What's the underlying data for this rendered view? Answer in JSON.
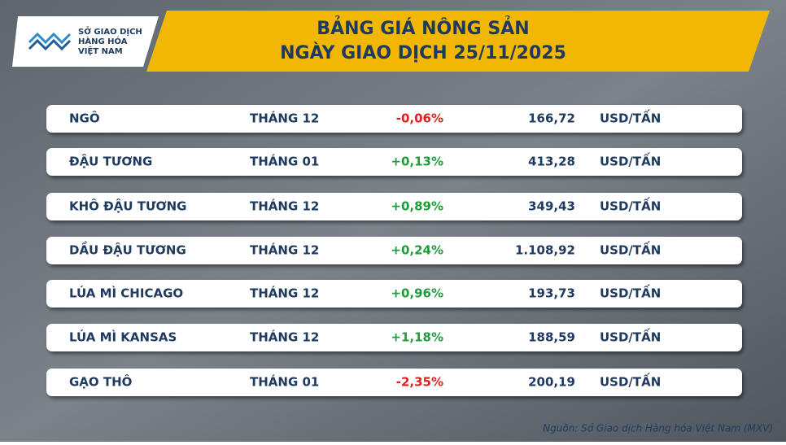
{
  "header": {
    "logo": [
      "SỞ GIAO DỊCH",
      "HÀNG HÓA",
      "VIỆT NAM"
    ],
    "title": [
      "BẢNG GIÁ NÔNG SẢN",
      "NGÀY GIAO DỊCH 25/11/2025"
    ]
  },
  "table": {
    "rows": [
      [
        "NGÔ",
        "THÁNG 12",
        "-0,06%",
        "166,72",
        "USD/TẤN"
      ],
      [
        "ĐẬU TƯƠNG",
        "THÁNG 01",
        "+0,13%",
        "413,28",
        "USD/TẤN"
      ],
      [
        "KHÔ ĐẬU TƯƠNG",
        "THÁNG 12",
        "+0,89%",
        "349,43",
        "USD/TẤN"
      ],
      [
        "DẦU ĐẬU TƯƠNG",
        "THÁNG 12",
        "+0,24%",
        "1.108,92",
        "USD/TẤN"
      ],
      [
        "LÚA MÌ CHICAGO",
        "THÁNG 12",
        "+0,96%",
        "193,73",
        "USD/TẤN"
      ],
      [
        "LÚA MÌ KANSAS",
        "THÁNG 12",
        "+1,18%",
        "188,59",
        "USD/TẤN"
      ],
      [
        "GẠO THÔ",
        "THÁNG 01",
        "-2,35%",
        "200,19",
        "USD/TẤN"
      ]
    ]
  },
  "footer": {
    "source": "Nguồn: Sở Giao dịch Hàng hóa Việt Nam (MXV)"
  }
}
